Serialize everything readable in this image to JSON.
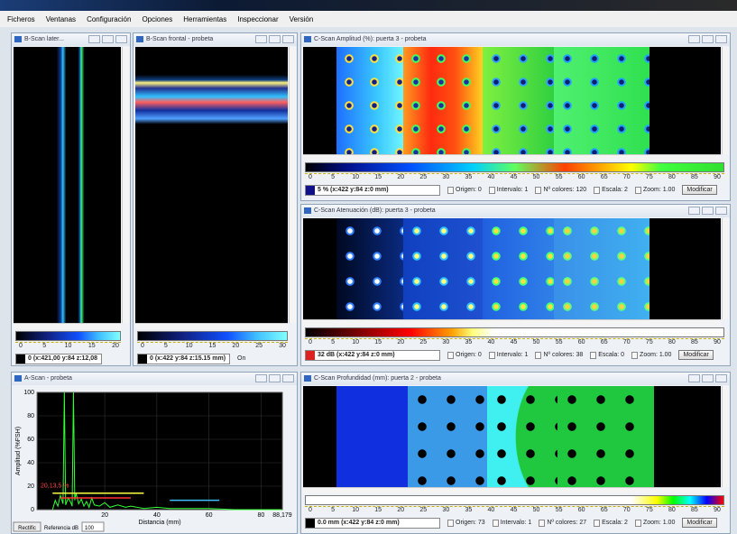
{
  "menu": [
    "Ficheros",
    "Ventanas",
    "Configuración",
    "Opciones",
    "Herramientas",
    "Inspeccionar",
    "Versión"
  ],
  "windows": {
    "bscan_lateral": {
      "title": "B-Scan later...",
      "scale_ticks": [
        0,
        5,
        10,
        15,
        20
      ],
      "status": "0  (x:421,00 y:84 z:12,08"
    },
    "bscan_frontal": {
      "title": "B-Scan frontal - probeta",
      "scale_ticks": [
        0,
        5,
        10,
        15,
        20,
        25,
        30
      ],
      "status": "0  (x:422 y:84 z:15.15 mm)",
      "extra": "On"
    },
    "cscan_amplitud": {
      "title": "C-Scan Amplitud (%): puerta 3 - probeta",
      "scale_ticks": [
        0,
        5,
        10,
        15,
        20,
        25,
        30,
        35,
        40,
        45,
        50,
        55,
        60,
        65,
        70,
        75,
        80,
        85,
        90
      ],
      "readout": "5 % (x:422 y:84 z:0 mm)",
      "controls": [
        "Origen: 0",
        "Intervalo: 1",
        "Nº colores: 120",
        "Escala: 2",
        "Zoom: 1.00"
      ],
      "button": "Modificar"
    },
    "cscan_atenuacion": {
      "title": "C-Scan Atenuación (dB): puerta 3 - probeta",
      "scale_ticks": [
        0,
        5,
        10,
        15,
        20,
        25,
        30,
        35,
        40,
        45,
        50,
        55,
        60,
        65,
        70,
        75,
        80,
        85,
        90
      ],
      "readout": "32 dB (x:422 y:84 z:0 mm)",
      "controls": [
        "Origen: 0",
        "Intervalo: 1",
        "Nº colores: 38",
        "Escala: 0",
        "Zoom: 1.00"
      ],
      "button": "Modificar"
    },
    "cscan_profundidad": {
      "title": "C-Scan Profundidad (mm): puerta 2 - probeta",
      "scale_ticks": [
        0,
        5,
        10,
        15,
        20,
        25,
        30,
        35,
        40,
        45,
        50,
        55,
        60,
        65,
        70,
        75,
        80,
        85,
        90
      ],
      "readout": "0.0 mm (x:422 y:84 z:0 mm)",
      "controls": [
        "Origen: 73",
        "Intervalo: 1",
        "Nº colores: 27",
        "Escala: 2",
        "Zoom: 1.00"
      ],
      "button": "Modificar"
    }
  },
  "ascan": {
    "title": "A-Scan - probeta",
    "y_label": "Amplitud (%FSH)",
    "x_label": "Distancia (mm)",
    "ylim": [
      0,
      100
    ],
    "yticks": [
      0,
      20,
      40,
      60,
      80,
      100
    ],
    "xlim": [
      -6,
      88.179
    ],
    "xticks": [
      20,
      40,
      60,
      80,
      {
        "value": 88.179,
        "label": "88,179"
      }
    ],
    "signal": {
      "color": "#33ff33",
      "x": [
        0,
        1,
        2,
        3,
        4,
        4.5,
        5,
        6,
        7,
        7.5,
        8,
        8.5,
        9,
        10,
        11,
        12,
        13,
        14,
        15,
        16,
        18,
        20,
        22,
        25,
        28,
        30,
        35,
        40,
        45,
        50,
        55,
        60,
        70,
        80,
        88
      ],
      "y": [
        0,
        8,
        3,
        12,
        5,
        100,
        4,
        10,
        6,
        3,
        100,
        8,
        14,
        5,
        9,
        3,
        7,
        2,
        10,
        4,
        3,
        6,
        2,
        4,
        2,
        3,
        1,
        2,
        1,
        1,
        1,
        1,
        0,
        0,
        0
      ]
    },
    "gates": [
      {
        "color": "#ffff40",
        "x": [
          0,
          35
        ],
        "y": 14
      },
      {
        "color": "#ff3030",
        "x": [
          3,
          30
        ],
        "y": 10
      },
      {
        "color": "#40c0ff",
        "x": [
          45,
          64
        ],
        "y": 8
      }
    ],
    "annotation": "20,13,5 %",
    "button": "Rectific",
    "reference_label": "Referencia dB",
    "reference_value": "100"
  }
}
